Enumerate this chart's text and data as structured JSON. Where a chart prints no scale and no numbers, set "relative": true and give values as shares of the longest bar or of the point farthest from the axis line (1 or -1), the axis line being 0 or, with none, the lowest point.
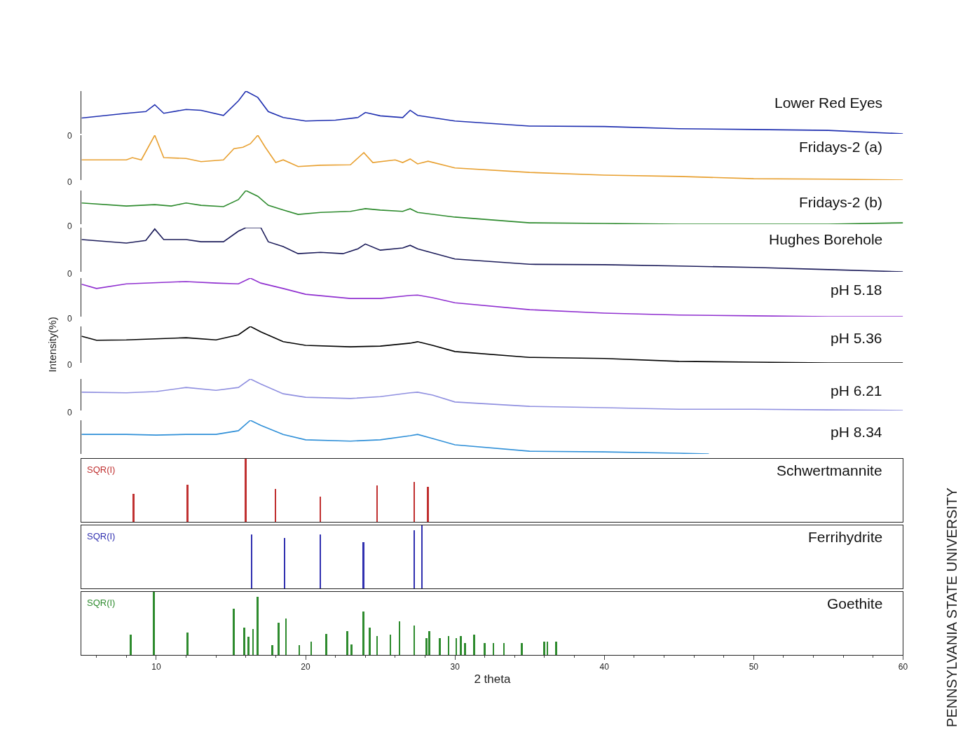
{
  "chart_data": [
    {
      "type": "line",
      "relative": true,
      "xlim": [
        5,
        60
      ],
      "tick_labels": false,
      "legend": false,
      "annotations": [
        "0"
      ],
      "series": [
        {
          "name": "Lower Red Eyes",
          "color": "#1f2fb0",
          "x": [
            5,
            8,
            9.3,
            9.9,
            10.5,
            12,
            13,
            14.5,
            15.5,
            16,
            16.8,
            17.5,
            18.5,
            20,
            22,
            23.5,
            24,
            25,
            26.5,
            27,
            27.5,
            30,
            35,
            40,
            45,
            50,
            55,
            60
          ],
          "values": [
            0.37,
            0.48,
            0.52,
            0.68,
            0.48,
            0.57,
            0.55,
            0.43,
            0.77,
            1,
            0.85,
            0.52,
            0.38,
            0.3,
            0.32,
            0.38,
            0.5,
            0.42,
            0.38,
            0.55,
            0.43,
            0.3,
            0.18,
            0.17,
            0.12,
            0.1,
            0.08,
            0
          ]
        }
      ]
    },
    {
      "type": "line",
      "relative": true,
      "xlim": [
        5,
        60
      ],
      "tick_labels": false,
      "legend": false,
      "annotations": [
        "0"
      ],
      "series": [
        {
          "name": "Fridays-2 (a)",
          "color": "#e8a030",
          "x": [
            5,
            8,
            8.4,
            9,
            9.9,
            10.5,
            12,
            13,
            14.5,
            15.2,
            15.8,
            16.3,
            16.8,
            17.3,
            18,
            18.5,
            19.5,
            21,
            23,
            23.9,
            24.5,
            26,
            26.5,
            27,
            27.5,
            28.2,
            30,
            35,
            40,
            45,
            50,
            55,
            60
          ],
          "values": [
            0.45,
            0.45,
            0.5,
            0.45,
            1,
            0.5,
            0.48,
            0.41,
            0.45,
            0.7,
            0.73,
            0.81,
            1,
            0.73,
            0.39,
            0.45,
            0.3,
            0.33,
            0.34,
            0.61,
            0.39,
            0.45,
            0.39,
            0.47,
            0.36,
            0.42,
            0.27,
            0.17,
            0.11,
            0.08,
            0.03,
            0.02,
            0
          ]
        }
      ]
    },
    {
      "type": "line",
      "relative": true,
      "xlim": [
        5,
        60
      ],
      "tick_labels": false,
      "legend": false,
      "annotations": [
        "0"
      ],
      "series": [
        {
          "name": "Fridays-2 (b)",
          "color": "#2e8b2e",
          "x": [
            5,
            8,
            9.9,
            11,
            12,
            13,
            14.5,
            15.5,
            16,
            16.8,
            17.5,
            18.5,
            19.5,
            21,
            23,
            24,
            25,
            26.5,
            27,
            27.5,
            30,
            35,
            40,
            45,
            50,
            55,
            60
          ],
          "values": [
            0.63,
            0.54,
            0.58,
            0.54,
            0.63,
            0.56,
            0.52,
            0.73,
            1,
            0.83,
            0.56,
            0.42,
            0.29,
            0.35,
            0.38,
            0.46,
            0.42,
            0.38,
            0.46,
            0.35,
            0.21,
            0.04,
            0.02,
            0,
            0,
            0,
            0.04
          ]
        }
      ]
    },
    {
      "type": "line",
      "relative": true,
      "xlim": [
        5,
        60
      ],
      "tick_labels": false,
      "legend": false,
      "annotations": [
        "0"
      ],
      "series": [
        {
          "name": "Hughes Borehole",
          "color": "#1c1c5a",
          "x": [
            5,
            8,
            9.3,
            9.9,
            10.5,
            12,
            13,
            14.5,
            15.5,
            16,
            17,
            17.5,
            18.5,
            19.5,
            21,
            22.5,
            23.5,
            24,
            25,
            26.5,
            27,
            27.5,
            30,
            35,
            40,
            45,
            50,
            55,
            60
          ],
          "values": [
            0.73,
            0.65,
            0.71,
            0.97,
            0.73,
            0.73,
            0.68,
            0.68,
            0.92,
            1,
            1,
            0.68,
            0.57,
            0.41,
            0.44,
            0.41,
            0.52,
            0.63,
            0.49,
            0.54,
            0.6,
            0.52,
            0.29,
            0.17,
            0.16,
            0.13,
            0.1,
            0.05,
            0
          ]
        }
      ]
    },
    {
      "type": "line",
      "relative": true,
      "xlim": [
        5,
        60
      ],
      "tick_labels": false,
      "legend": false,
      "annotations": [
        "0"
      ],
      "series": [
        {
          "name": "pH 5.18",
          "color": "#9030d0",
          "x": [
            5,
            6,
            8,
            12,
            14,
            15.5,
            16.3,
            17,
            18.5,
            20,
            23,
            25,
            27,
            27.5,
            28.5,
            30,
            35,
            40,
            45,
            50,
            55,
            60
          ],
          "values": [
            0.84,
            0.73,
            0.85,
            0.91,
            0.87,
            0.85,
            1,
            0.87,
            0.73,
            0.58,
            0.47,
            0.47,
            0.55,
            0.56,
            0.49,
            0.36,
            0.18,
            0.09,
            0.04,
            0.02,
            0,
            0
          ]
        }
      ]
    },
    {
      "type": "line",
      "relative": true,
      "xlim": [
        5,
        60
      ],
      "tick_labels": false,
      "legend": false,
      "annotations": [
        "0"
      ],
      "ylabel": "Intensity(%)",
      "series": [
        {
          "name": "pH 5.36",
          "color": "#000000",
          "x": [
            5,
            6,
            8,
            12,
            14,
            15.5,
            16.3,
            17,
            18.5,
            20,
            23,
            25,
            27,
            27.5,
            28.5,
            30,
            35,
            40,
            45,
            50,
            55,
            60
          ],
          "values": [
            0.73,
            0.62,
            0.63,
            0.69,
            0.63,
            0.77,
            1,
            0.85,
            0.58,
            0.48,
            0.44,
            0.46,
            0.54,
            0.58,
            0.48,
            0.31,
            0.15,
            0.12,
            0.04,
            0.02,
            0,
            0
          ]
        }
      ]
    },
    {
      "type": "line",
      "relative": true,
      "xlim": [
        5,
        60
      ],
      "tick_labels": false,
      "legend": false,
      "annotations": [
        "0"
      ],
      "series": [
        {
          "name": "pH 6.21",
          "color": "#9090e0",
          "x": [
            5,
            8,
            10,
            12,
            14,
            15.5,
            16.3,
            17,
            18.5,
            20,
            23,
            25,
            27,
            27.5,
            28.5,
            30,
            35,
            40,
            45,
            50,
            55,
            60
          ],
          "values": [
            0.58,
            0.56,
            0.6,
            0.73,
            0.64,
            0.73,
            1,
            0.84,
            0.53,
            0.42,
            0.38,
            0.44,
            0.56,
            0.58,
            0.49,
            0.27,
            0.13,
            0.09,
            0.04,
            0.04,
            0.02,
            0
          ]
        }
      ]
    },
    {
      "type": "line",
      "relative": true,
      "xlim": [
        5,
        60
      ],
      "tick_labels": false,
      "legend": false,
      "series": [
        {
          "name": "pH 8.34",
          "color": "#3090d8",
          "x": [
            5,
            8,
            10,
            12,
            14,
            15.5,
            16.3,
            17,
            18.5,
            20,
            23,
            25,
            27,
            27.5,
            28.5,
            30,
            35,
            40,
            45,
            47
          ],
          "values": [
            0.58,
            0.58,
            0.56,
            0.58,
            0.58,
            0.69,
            1,
            0.85,
            0.58,
            0.42,
            0.38,
            0.42,
            0.54,
            0.58,
            0.46,
            0.27,
            0.08,
            0.06,
            0.02,
            0
          ]
        }
      ]
    },
    {
      "type": "bar",
      "relative": true,
      "xlim": [
        5,
        60
      ],
      "tick_labels": false,
      "legend": false,
      "annotations": [
        "SQR(I)"
      ],
      "series": [
        {
          "name": "Schwertmannite",
          "color": "#c03030",
          "x": [
            8.5,
            12.1,
            16.0,
            18.0,
            21.0,
            24.8,
            27.3,
            28.2
          ],
          "values": [
            0.44,
            0.59,
            1,
            0.52,
            0.4,
            0.58,
            0.63,
            0.56
          ]
        }
      ]
    },
    {
      "type": "bar",
      "relative": true,
      "xlim": [
        5,
        60
      ],
      "tick_labels": false,
      "legend": false,
      "annotations": [
        "SQR(I)"
      ],
      "series": [
        {
          "name": "Ferrihydrite",
          "color": "#3030b0",
          "x": [
            16.4,
            18.6,
            21.0,
            23.9,
            27.3,
            27.8
          ],
          "values": [
            0.86,
            0.8,
            0.86,
            0.73,
            0.92,
            1
          ]
        }
      ]
    },
    {
      "type": "bar",
      "relative": true,
      "xlim": [
        5,
        60
      ],
      "xticks": [
        10,
        20,
        30,
        40,
        50,
        60
      ],
      "tick_labels": "x",
      "xlabel": "2 theta",
      "legend": false,
      "annotations": [
        "SQR(I)",
        "PENNSYLVANIA STATE UNIVERSITY"
      ],
      "series": [
        {
          "name": "Goethite",
          "color": "#2e8b2e",
          "x": [
            8.3,
            9.86,
            12.1,
            15.2,
            15.9,
            16.2,
            16.5,
            16.8,
            17.8,
            18.2,
            18.7,
            19.6,
            20.4,
            21.4,
            22.8,
            23.1,
            23.9,
            24.3,
            24.8,
            25.7,
            26.3,
            27.3,
            28.1,
            28.3,
            29.0,
            29.6,
            30.1,
            30.4,
            30.7,
            31.3,
            32.0,
            32.6,
            33.3,
            34.5,
            36.0,
            36.2,
            36.8
          ],
          "values": [
            0.32,
            1,
            0.36,
            0.73,
            0.43,
            0.29,
            0.41,
            0.92,
            0.16,
            0.51,
            0.58,
            0.16,
            0.21,
            0.33,
            0.38,
            0.17,
            0.69,
            0.43,
            0.3,
            0.32,
            0.53,
            0.47,
            0.27,
            0.38,
            0.27,
            0.3,
            0.27,
            0.3,
            0.19,
            0.32,
            0.19,
            0.19,
            0.19,
            0.19,
            0.21,
            0.21,
            0.21
          ]
        }
      ]
    }
  ]
}
